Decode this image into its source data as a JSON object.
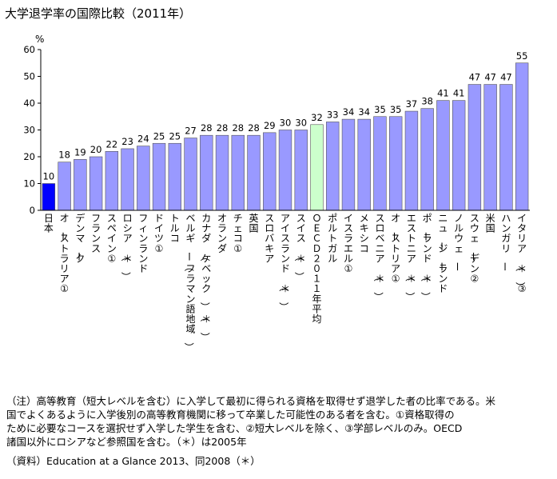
{
  "chart_data": {
    "type": "bar",
    "title": "大学退学率の国際比較（2011年）",
    "ylabel": "%",
    "ylim": [
      0,
      60
    ],
    "yticks": [
      "0",
      "10",
      "20",
      "30",
      "40",
      "50",
      "60"
    ],
    "grid": false,
    "legend": "none",
    "categories": [
      "日本",
      "オーストラリア①",
      "デンマーク",
      "フランス",
      "スペイン①",
      "ロシア（＊）",
      "フィンランド",
      "ドイツ①",
      "トルコ",
      "ベルギー（フラマン語地域）",
      "カナダ（ケベック）（＊）",
      "オランダ",
      "チェコ①",
      "英国",
      "スロバキア",
      "アイスランド（＊）",
      "スイス（＊）",
      "ＯＥＣＤ２０１１年平均",
      "ポルトガル",
      "イスラエル①",
      "メキシコ",
      "スロベニア（＊）",
      "オーストリア①",
      "エストニア（＊）",
      "ポーランド（＊）",
      "ニュージーランド",
      "ノルウェー",
      "スウェーデン②",
      "米国",
      "ハンガリー",
      "イタリア（＊）③"
    ],
    "values": [
      10,
      18,
      19,
      20,
      22,
      23,
      24,
      25,
      25,
      27,
      28,
      28,
      28,
      28,
      29,
      30,
      30,
      32,
      33,
      34,
      34,
      35,
      35,
      37,
      38,
      41,
      41,
      47,
      47,
      47,
      55
    ],
    "value_labels": [
      "10",
      "18",
      "19",
      "20",
      "22",
      "23",
      "24",
      "25",
      "25",
      "27",
      "28",
      "28",
      "28",
      "28",
      "29",
      "30",
      "30",
      "32",
      "33",
      "34",
      "34",
      "35",
      "35",
      "37",
      "38",
      "41",
      "41",
      "47",
      "47",
      "47",
      "55"
    ],
    "colors": {
      "default_bar": "#9999ff",
      "japan_bar": "#0000ff",
      "oecd_bar": "#ccffcc",
      "axis": "#000000"
    },
    "highlight": {
      "japan_index": 0,
      "oecd_index": 17
    }
  },
  "notes": {
    "lines": [
      "（注）高等教育（短大レベルを含む）に入学して最初に得られる資格を取得せず退学した者の比率である。米",
      "国でよくあるように入学後別の高等教育機関に移って卒業した可能性のある者を含む。①資格取得の",
      "ために必要なコースを選択せず入学した学生を含む、②短大レベルを除く、③学部レベルのみ。OECD",
      "諸国以外にロシアなど参照国を含む。（＊）は2005年",
      "（資料）Education at a Glance 2013、同2008（＊）"
    ]
  }
}
